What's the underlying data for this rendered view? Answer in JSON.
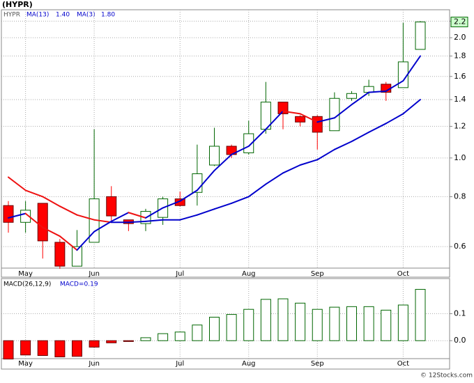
{
  "chart_data": [
    {
      "type": "candlestick",
      "title": "(HYPR)",
      "symbol": "HYPR",
      "log_scale": true,
      "grid": true,
      "categories": [
        null,
        "May",
        null,
        null,
        null,
        "Jun",
        null,
        null,
        null,
        null,
        "Jul",
        null,
        null,
        null,
        "Aug",
        null,
        null,
        null,
        "Sep",
        null,
        null,
        null,
        null,
        "Oct",
        null
      ],
      "open": [
        0.76,
        0.69,
        0.77,
        0.615,
        0.536,
        0.615,
        0.8,
        0.7,
        0.685,
        0.71,
        0.79,
        0.82,
        0.96,
        1.07,
        1.03,
        1.18,
        1.38,
        1.27,
        1.27,
        1.17,
        1.41,
        1.46,
        1.53,
        1.5,
        1.87
      ],
      "high": [
        0.78,
        0.78,
        0.77,
        0.627,
        0.66,
        1.18,
        0.85,
        0.7,
        0.746,
        0.8,
        0.824,
        1.08,
        1.19,
        1.08,
        1.24,
        1.55,
        1.38,
        1.28,
        1.28,
        1.46,
        1.47,
        1.57,
        1.55,
        2.18,
        2.2
      ],
      "low": [
        0.65,
        0.65,
        0.56,
        0.528,
        0.536,
        0.615,
        0.694,
        0.656,
        0.656,
        0.68,
        0.756,
        0.76,
        0.955,
        1.0,
        1.02,
        1.15,
        1.18,
        1.2,
        1.05,
        1.17,
        1.39,
        1.43,
        1.39,
        1.5,
        1.87
      ],
      "close": [
        0.69,
        0.74,
        0.62,
        0.536,
        0.6,
        0.79,
        0.716,
        0.685,
        0.735,
        0.79,
        0.76,
        0.913,
        1.07,
        1.02,
        1.15,
        1.38,
        1.29,
        1.23,
        1.16,
        1.41,
        1.45,
        1.51,
        1.46,
        1.74,
        2.19
      ],
      "up_color": "#006600",
      "down_color": "#ff0000",
      "last_label": "2.2",
      "last_label_color": "#ccffcc",
      "series": [
        {
          "name": "MA(13)",
          "last_label": "1.40",
          "up_color": "#0000cc",
          "down_color": "#ee1111",
          "values": [
            0.895,
            0.83,
            0.8,
            0.757,
            0.72,
            0.7,
            0.69,
            0.69,
            0.694,
            0.7,
            0.7,
            0.72,
            0.745,
            0.77,
            0.8,
            0.86,
            0.917,
            0.96,
            0.99,
            1.05,
            1.1,
            1.16,
            1.22,
            1.29,
            1.4
          ]
        },
        {
          "name": "MA(3)",
          "last_label": "1.80",
          "up_color": "#0000cc",
          "down_color": "#ee1111",
          "values": [
            0.708,
            0.726,
            0.67,
            0.637,
            0.588,
            0.654,
            0.694,
            0.73,
            0.708,
            0.75,
            0.78,
            0.83,
            0.93,
            1.02,
            1.07,
            1.18,
            1.31,
            1.29,
            1.23,
            1.26,
            1.36,
            1.46,
            1.47,
            1.56,
            1.8
          ]
        }
      ],
      "ylim": [
        0.53,
        2.35
      ],
      "yticks": [
        0.6,
        0.8,
        {
          "value": 1,
          "label": "1.0"
        },
        1.2,
        1.4,
        1.6,
        1.8,
        {
          "value": 2,
          "label": "2.0"
        },
        2.2
      ]
    },
    {
      "type": "bar",
      "title": "MACD(26,12,9)",
      "last_label": "MACD=0.19",
      "grid": true,
      "categories": [
        null,
        "May",
        null,
        null,
        null,
        "Jun",
        null,
        null,
        null,
        null,
        "Jul",
        null,
        null,
        null,
        "Aug",
        null,
        null,
        null,
        "Sep",
        null,
        null,
        null,
        null,
        "Oct",
        null
      ],
      "values": [
        -0.068,
        -0.053,
        -0.055,
        -0.06,
        -0.058,
        -0.024,
        -0.008,
        -0.003,
        0.011,
        0.026,
        0.032,
        0.058,
        0.087,
        0.097,
        0.116,
        0.153,
        0.155,
        0.139,
        0.116,
        0.124,
        0.126,
        0.126,
        0.113,
        0.132,
        0.19
      ],
      "up_color": "#006600",
      "down_color": "#ff0000",
      "ylim": [
        -0.1,
        0.23
      ],
      "yticks": [
        {
          "value": 0,
          "label": "0.0"
        },
        0.1
      ]
    }
  ],
  "footer": "© 12Stocks.com"
}
